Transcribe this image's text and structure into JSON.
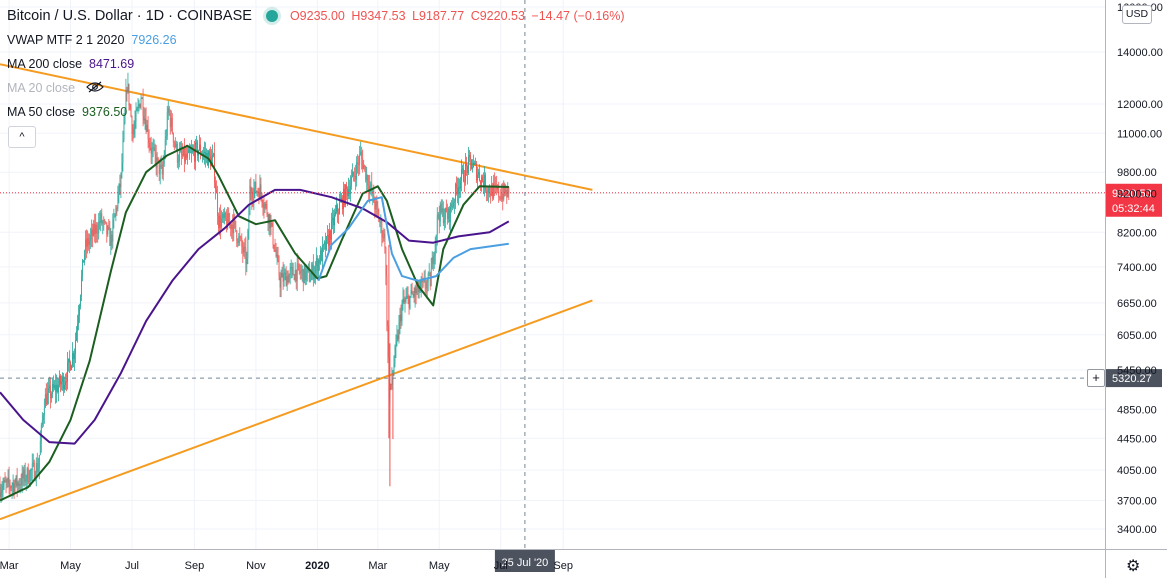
{
  "header": {
    "symbol": "Bitcoin / U.S. Dollar · 1D · COINBASE",
    "open": "O9235.00",
    "high": "H9347.53",
    "low": "L9187.77",
    "close": "C9220.53",
    "change": "−14.47 (−0.16%)",
    "status_color": "#26a69a"
  },
  "indicators": [
    {
      "label": "VWAP MTF 2 1 2020",
      "value": "7926.26",
      "color": "#4b9fe1"
    },
    {
      "label": "MA 200 close",
      "value": "8471.69",
      "color": "#4a148c"
    },
    {
      "label": "MA 20 close",
      "value": "",
      "color": "#b2b5be",
      "icon": "eye-hidden-icon"
    },
    {
      "label": "MA 50 close",
      "value": "9376.50",
      "color": "#1b5e20"
    }
  ],
  "collapse_label": "^",
  "currency_label": "USD",
  "price_labels": {
    "last_price": "9220.53",
    "countdown": "05:32:44",
    "crosshair_price": "5320.27",
    "crosshair_date": "25 Jul '20",
    "last_price_color": "#f23645"
  },
  "settings_icon": "gear-icon",
  "chart_data": {
    "type": "candlestick",
    "title": "Bitcoin / U.S. Dollar · 1D · COINBASE",
    "y_scale": "log",
    "ylim": [
      3200,
      16000
    ],
    "y_ticks": [
      "16000.00",
      "14000.00",
      "12000.00",
      "11000.00",
      "9800.00",
      "9200.00",
      "8200.00",
      "7400.00",
      "6650.00",
      "6050.00",
      "5450.00",
      "4850.00",
      "4450.00",
      "4050.00",
      "3700.00",
      "3400.00"
    ],
    "x_ticks": [
      "Mar",
      "May",
      "Jul",
      "Sep",
      "Nov",
      "2020",
      "Mar",
      "May",
      "Jul",
      "Sep"
    ],
    "x_range": [
      "2019-02-20",
      "2020-09-30"
    ],
    "grid": true,
    "price_path": [
      [
        "2019-02-20",
        3850
      ],
      [
        "2019-03-10",
        3900
      ],
      [
        "2019-03-30",
        4100
      ],
      [
        "2019-04-05",
        5000
      ],
      [
        "2019-04-25",
        5300
      ],
      [
        "2019-05-05",
        5800
      ],
      [
        "2019-05-15",
        7800
      ],
      [
        "2019-05-31",
        8500
      ],
      [
        "2019-06-10",
        8000
      ],
      [
        "2019-06-20",
        9600
      ],
      [
        "2019-06-26",
        12800
      ],
      [
        "2019-07-02",
        11000
      ],
      [
        "2019-07-10",
        12300
      ],
      [
        "2019-07-20",
        10500
      ],
      [
        "2019-07-31",
        9700
      ],
      [
        "2019-08-06",
        11800
      ],
      [
        "2019-08-15",
        10300
      ],
      [
        "2019-08-25",
        10200
      ],
      [
        "2019-09-05",
        10500
      ],
      [
        "2019-09-20",
        10100
      ],
      [
        "2019-09-25",
        8500
      ],
      [
        "2019-10-10",
        8400
      ],
      [
        "2019-10-23",
        7500
      ],
      [
        "2019-10-26",
        9300
      ],
      [
        "2019-11-05",
        9300
      ],
      [
        "2019-11-15",
        8500
      ],
      [
        "2019-11-25",
        7100
      ],
      [
        "2019-12-10",
        7300
      ],
      [
        "2019-12-25",
        7200
      ],
      [
        "2020-01-10",
        7900
      ],
      [
        "2020-01-20",
        8700
      ],
      [
        "2020-02-05",
        9600
      ],
      [
        "2020-02-13",
        10300
      ],
      [
        "2020-02-25",
        9100
      ],
      [
        "2020-03-08",
        8000
      ],
      [
        "2020-03-12",
        5000
      ],
      [
        "2020-03-25",
        6600
      ],
      [
        "2020-04-10",
        6900
      ],
      [
        "2020-04-22",
        7100
      ],
      [
        "2020-04-30",
        8700
      ],
      [
        "2020-05-10",
        8600
      ],
      [
        "2020-05-20",
        9500
      ],
      [
        "2020-06-01",
        10100
      ],
      [
        "2020-06-10",
        9700
      ],
      [
        "2020-06-20",
        9300
      ],
      [
        "2020-07-01",
        9200
      ],
      [
        "2020-07-09",
        9220
      ]
    ],
    "series": [
      {
        "name": "MA 50 close",
        "color": "#1b5e20",
        "points": [
          [
            "2019-02-20",
            3700
          ],
          [
            "2019-03-20",
            3850
          ],
          [
            "2019-04-10",
            4150
          ],
          [
            "2019-05-01",
            4700
          ],
          [
            "2019-05-20",
            5600
          ],
          [
            "2019-06-10",
            7300
          ],
          [
            "2019-06-25",
            8700
          ],
          [
            "2019-07-15",
            9800
          ],
          [
            "2019-08-05",
            10300
          ],
          [
            "2019-08-25",
            10600
          ],
          [
            "2019-09-15",
            10200
          ],
          [
            "2019-09-25",
            9700
          ],
          [
            "2019-10-15",
            8600
          ],
          [
            "2019-11-01",
            8400
          ],
          [
            "2019-11-20",
            8500
          ],
          [
            "2019-12-10",
            7700
          ],
          [
            "2020-01-01",
            7150
          ],
          [
            "2020-01-10",
            7200
          ],
          [
            "2020-01-25",
            8000
          ],
          [
            "2020-02-15",
            9200
          ],
          [
            "2020-03-01",
            9400
          ],
          [
            "2020-03-10",
            9000
          ],
          [
            "2020-03-25",
            7800
          ],
          [
            "2020-04-10",
            7000
          ],
          [
            "2020-04-25",
            6600
          ],
          [
            "2020-05-05",
            7800
          ],
          [
            "2020-05-25",
            8900
          ],
          [
            "2020-06-10",
            9400
          ],
          [
            "2020-07-09",
            9380
          ]
        ]
      },
      {
        "name": "MA 200 close",
        "color": "#4a148c",
        "points": [
          [
            "2019-02-20",
            5100
          ],
          [
            "2019-03-15",
            4700
          ],
          [
            "2019-04-10",
            4400
          ],
          [
            "2019-05-05",
            4380
          ],
          [
            "2019-05-25",
            4700
          ],
          [
            "2019-06-20",
            5400
          ],
          [
            "2019-07-15",
            6300
          ],
          [
            "2019-08-10",
            7100
          ],
          [
            "2019-09-05",
            7800
          ],
          [
            "2019-10-01",
            8300
          ],
          [
            "2019-10-25",
            8900
          ],
          [
            "2019-11-20",
            9300
          ],
          [
            "2019-12-15",
            9300
          ],
          [
            "2020-01-15",
            9100
          ],
          [
            "2020-02-15",
            8800
          ],
          [
            "2020-03-10",
            8450
          ],
          [
            "2020-04-01",
            8000
          ],
          [
            "2020-04-25",
            7950
          ],
          [
            "2020-05-20",
            8100
          ],
          [
            "2020-06-20",
            8200
          ],
          [
            "2020-07-09",
            8470
          ]
        ]
      },
      {
        "name": "VWAP MTF 2 1 2020",
        "color": "#4b9fe1",
        "points": [
          [
            "2020-01-02",
            7100
          ],
          [
            "2020-01-15",
            7900
          ],
          [
            "2020-02-01",
            8300
          ],
          [
            "2020-02-20",
            9000
          ],
          [
            "2020-03-05",
            9100
          ],
          [
            "2020-03-15",
            7700
          ],
          [
            "2020-03-25",
            7200
          ],
          [
            "2020-04-10",
            7100
          ],
          [
            "2020-04-28",
            7200
          ],
          [
            "2020-05-15",
            7600
          ],
          [
            "2020-06-01",
            7800
          ],
          [
            "2020-07-09",
            7926
          ]
        ]
      }
    ],
    "trendlines": [
      {
        "name": "upper-resistance",
        "color": "#f59b20",
        "from": [
          "2019-02-20",
          13500
        ],
        "to": [
          "2020-09-30",
          9300
        ]
      },
      {
        "name": "lower-support",
        "color": "#f59b20",
        "from": [
          "2019-02-20",
          3500
        ],
        "to": [
          "2020-09-30",
          6700
        ]
      }
    ],
    "last_price": 9220.53,
    "crosshair": {
      "date": "2020-07-25",
      "price": 5320.27
    }
  }
}
